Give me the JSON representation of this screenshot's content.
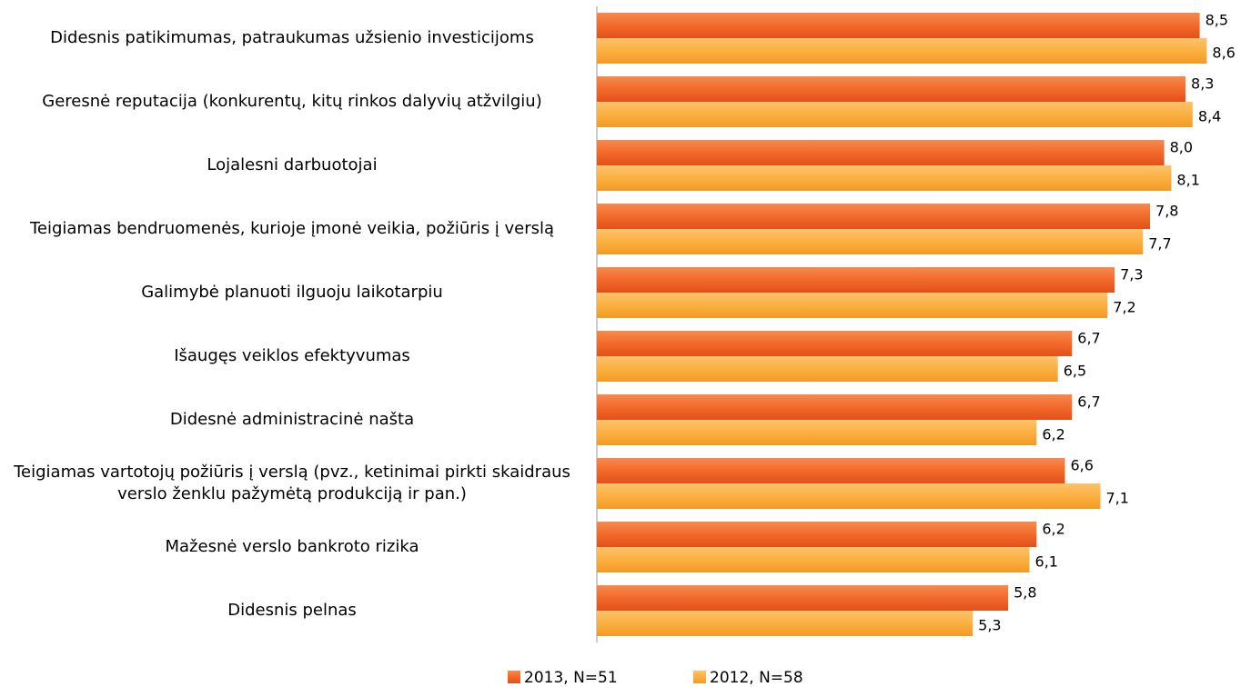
{
  "chart_data": {
    "type": "hbar",
    "categories": [
      "Didesnis patikimumas, patraukumas užsienio investicijoms",
      "Geresnė reputacija (konkurentų, kitų rinkos dalyvių atžvilgiu)",
      "Lojalesni darbuotojai",
      "Teigiamas bendruomenės, kurioje įmonė veikia, požiūris į verslą",
      "Galimybė planuoti ilguoju laikotarpiu",
      "Išaugęs veiklos efektyvumas",
      "Didesnė administracinė našta",
      "Teigiamas vartotojų požiūris į verslą (pvz., ketinimai pirkti skaidraus verslo ženklu pažymėtą produkciją ir pan.)",
      "Mažesnė verslo bankroto rizika",
      "Didesnis pelnas"
    ],
    "series": [
      {
        "name": "2013, N=51",
        "color": "#f26a2a",
        "values": [
          8.5,
          8.3,
          8.0,
          7.8,
          7.3,
          6.7,
          6.7,
          6.6,
          6.2,
          5.8
        ],
        "value_labels": [
          "8,5",
          "8,3",
          "8,0",
          "7,8",
          "7,3",
          "6,7",
          "6,7",
          "6,6",
          "6,2",
          "5,8"
        ]
      },
      {
        "name": "2012, N=58",
        "color": "#fbb040",
        "values": [
          8.6,
          8.4,
          8.1,
          7.7,
          7.2,
          6.5,
          6.2,
          7.1,
          6.1,
          5.3
        ],
        "value_labels": [
          "8,6",
          "8,4",
          "8,1",
          "7,7",
          "7,2",
          "6,5",
          "6,2",
          "7,1",
          "6,1",
          "5,3"
        ]
      }
    ],
    "xlim": [
      0,
      8.8
    ],
    "legend": "bottom"
  }
}
